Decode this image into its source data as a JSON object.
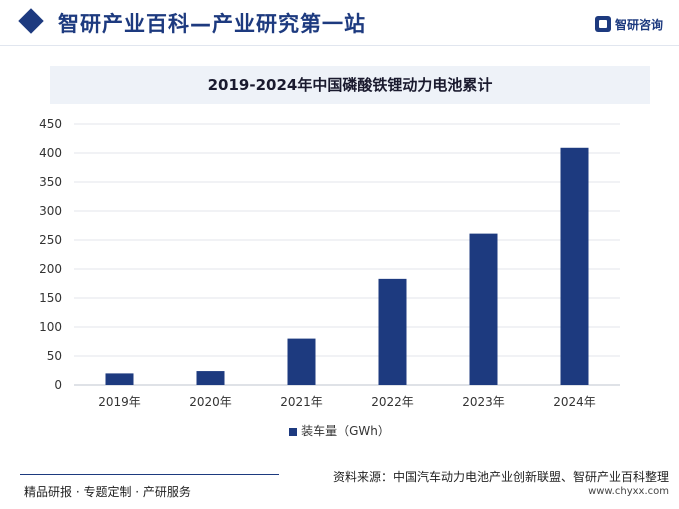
{
  "header": {
    "site_title": "智研产业百科—产业研究第一站",
    "logo_text": "智研咨询",
    "brand_color": "#1d3a7f"
  },
  "chart_data": {
    "type": "bar",
    "title": "2019-2024年中国磷酸铁锂动力电池累计",
    "categories": [
      "2019年",
      "2020年",
      "2021年",
      "2022年",
      "2023年",
      "2024年"
    ],
    "series": [
      {
        "name": "装车量（GWh）",
        "values": [
          20,
          24,
          80,
          183,
          261,
          409
        ],
        "color": "#1d3a7f"
      }
    ],
    "yticks": [
      0,
      50,
      100,
      150,
      200,
      250,
      300,
      350,
      400,
      450
    ],
    "ylim": [
      0,
      450
    ],
    "grid": true,
    "legend_position": "bottom"
  },
  "footer": {
    "left_text": "精品研报 · 专题定制 · 产研服务",
    "source_text": "资料来源：中国汽车动力电池产业创新联盟、智研产业百科整理",
    "url_text": "www.chyxx.com"
  }
}
